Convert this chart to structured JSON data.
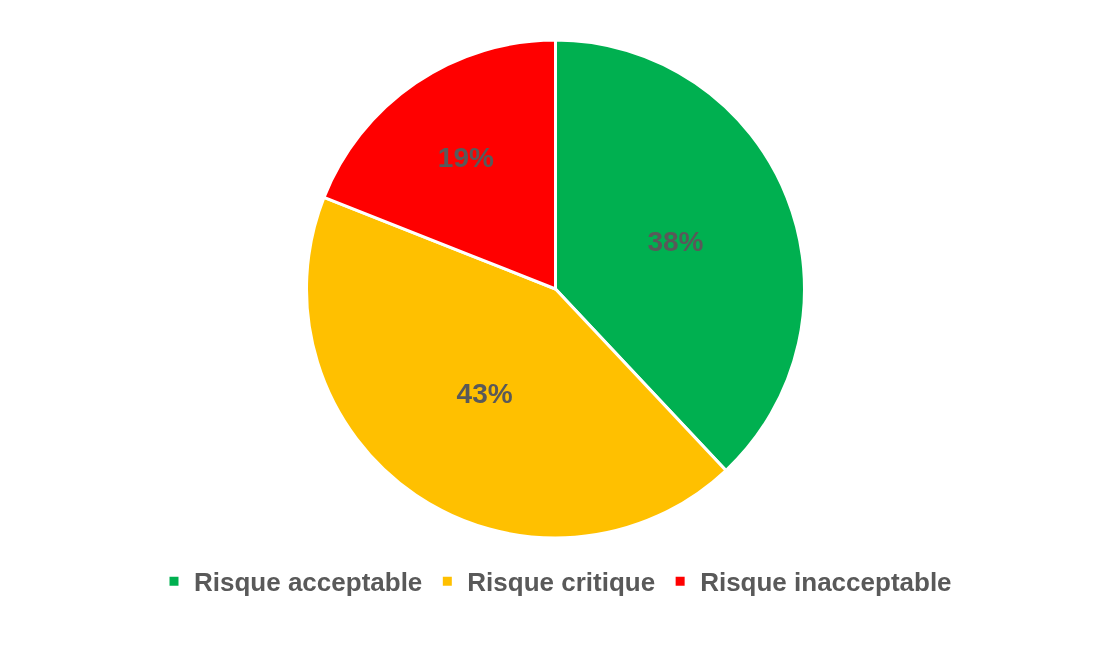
{
  "chart_data": {
    "type": "pie",
    "categories": [
      "Risque acceptable",
      "Risque critique",
      "Risque inacceptable"
    ],
    "values": [
      38,
      43,
      19
    ],
    "value_labels": [
      "38%",
      "43%",
      "19%"
    ],
    "colors": [
      "#00b050",
      "#ffc000",
      "#ff0000"
    ],
    "legend": "bottom"
  }
}
